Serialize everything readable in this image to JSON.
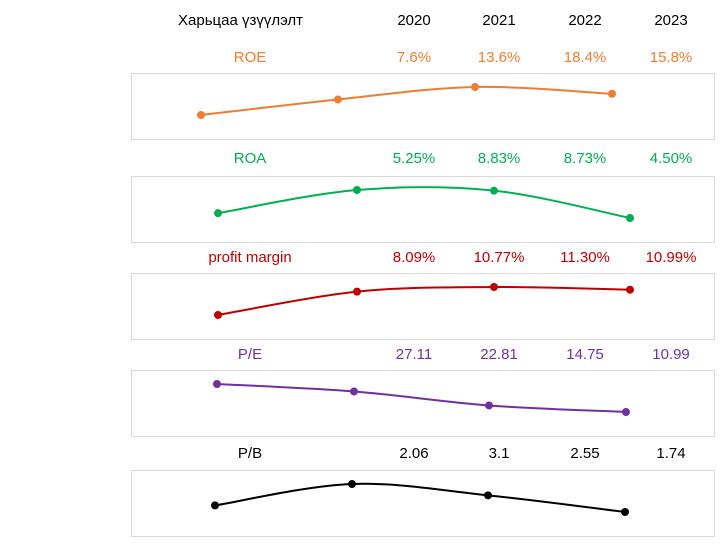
{
  "chart_data": {
    "type": "line",
    "header_label": "Харьцаа үзүүлэлт",
    "years": [
      "2020",
      "2021",
      "2022",
      "2023"
    ],
    "grid": false,
    "series": [
      {
        "name": "ROE",
        "color": "#ed7d31",
        "labels": [
          "7.6%",
          "13.6%",
          "18.4%",
          "15.8%"
        ],
        "values": [
          7.6,
          13.6,
          18.4,
          15.8
        ]
      },
      {
        "name": "ROA",
        "color": "#00b050",
        "labels": [
          "5.25%",
          "8.83%",
          "8.73%",
          "4.50%"
        ],
        "values": [
          5.25,
          8.83,
          8.73,
          4.5
        ]
      },
      {
        "name": "profit margin",
        "color": "#c00000",
        "labels": [
          "8.09%",
          "10.77%",
          "11.30%",
          "10.99%"
        ],
        "values": [
          8.09,
          10.77,
          11.3,
          10.99
        ]
      },
      {
        "name": "P/E",
        "color": "#7030a0",
        "labels": [
          "27.11",
          "22.81",
          "14.75",
          "10.99"
        ],
        "values": [
          27.11,
          22.81,
          14.75,
          10.99
        ]
      },
      {
        "name": "P/B",
        "color": "#000000",
        "labels": [
          "2.06",
          "3.1",
          "2.55",
          "1.74"
        ],
        "values": [
          2.06,
          3.1,
          2.55,
          1.74
        ]
      }
    ]
  }
}
